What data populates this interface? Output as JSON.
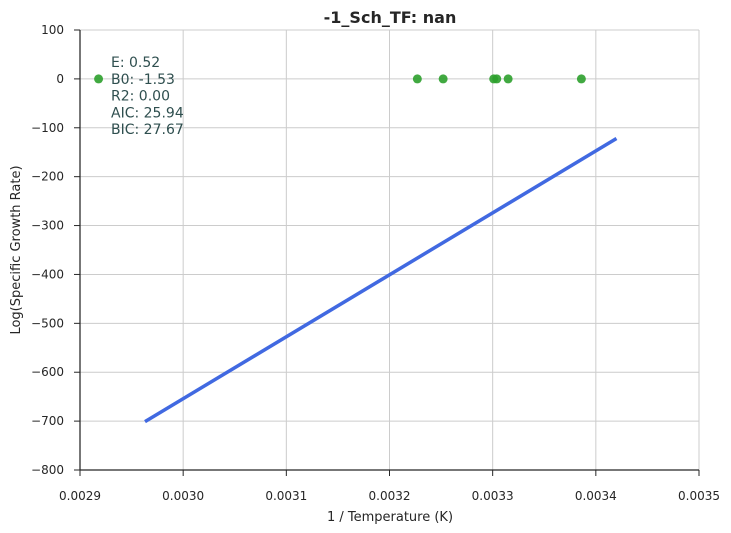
{
  "chart_data": {
    "type": "scatter",
    "title": "-1_Sch_TF: nan",
    "xlabel": "1 / Temperature (K)",
    "ylabel": "Log(Specific Growth Rate)",
    "xlim": [
      0.0029,
      0.0035
    ],
    "ylim": [
      -800,
      100
    ],
    "xticks": [
      "0.0029",
      "0.0030",
      "0.0031",
      "0.0032",
      "0.0033",
      "0.0034",
      "0.0035"
    ],
    "yticks": [
      "100",
      "0",
      "−100",
      "−200",
      "−300",
      "−400",
      "−500",
      "−600",
      "−700",
      "−800"
    ],
    "ytick_values": [
      100,
      0,
      -100,
      -200,
      -300,
      -400,
      -500,
      -600,
      -700,
      -800
    ],
    "grid": true,
    "series": [
      {
        "kind": "points",
        "color": "#2ca02c",
        "x": [
          0.002918,
          0.003227,
          0.003252,
          0.003301,
          0.003304,
          0.003315,
          0.003386
        ],
        "y": [
          0,
          0,
          0,
          0,
          0,
          0,
          0
        ]
      },
      {
        "kind": "line",
        "color": "#4169e1",
        "x": [
          0.002963,
          0.00342
        ],
        "y": [
          -701,
          -122
        ]
      }
    ],
    "annotations": [
      "E:  0.52",
      "B0:  -1.53",
      "R2:  0.00",
      "AIC: 25.94",
      "BIC: 27.67"
    ]
  }
}
